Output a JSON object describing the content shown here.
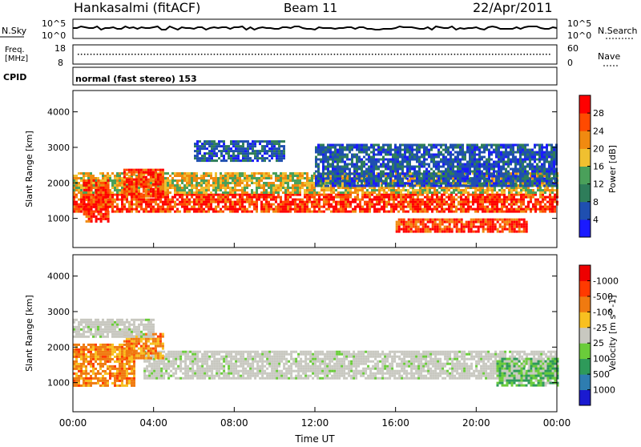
{
  "header": {
    "station": "Hankasalmi (fitACF)",
    "beam": "Beam 11",
    "date": "22/Apr/2011"
  },
  "noise_panel": {
    "left_label": "N.Sky",
    "left_ticks": [
      "10^5",
      "10^0"
    ],
    "right_label": "N.Search",
    "right_ticks": [
      "10^5",
      "10^0"
    ]
  },
  "freq_panel": {
    "left_label_1": "Freq.",
    "left_label_2": "[MHz]",
    "left_ticks": [
      "18",
      "8"
    ],
    "right_label": "Nave",
    "right_ticks": [
      "60",
      "0"
    ]
  },
  "cpid": {
    "label": "CPID",
    "value": "normal (fast stereo) 153"
  },
  "chart_data": [
    {
      "type": "heatmap",
      "name": "power",
      "ylabel": "Slant Range [km]",
      "ylim": [
        180,
        4600
      ],
      "yticks": [
        1000,
        2000,
        3000,
        4000
      ],
      "colorbar_label": "Power [dB]",
      "colorbar_ticks": [
        "4",
        "8",
        "12",
        "16",
        "20",
        "24",
        "28"
      ],
      "colorbar_colors": [
        "#1a1aff",
        "#1f4fb0",
        "#2e7d5a",
        "#4aa05a",
        "#f0c030",
        "#f08a10",
        "#ff4a00",
        "#ff0000"
      ],
      "bands": [
        {
          "start_h": 0.0,
          "end_h": 24.0,
          "low_km": 1200,
          "high_km": 1700,
          "level": "high"
        },
        {
          "start_h": 0.0,
          "end_h": 24.0,
          "low_km": 1700,
          "high_km": 2300,
          "level": "medium"
        },
        {
          "start_h": 6.0,
          "end_h": 10.5,
          "low_km": 2600,
          "high_km": 3200,
          "level": "low"
        },
        {
          "start_h": 12.0,
          "end_h": 24.0,
          "low_km": 1900,
          "high_km": 3100,
          "level": "low"
        },
        {
          "start_h": 0.5,
          "end_h": 1.8,
          "low_km": 900,
          "high_km": 2100,
          "level": "high"
        },
        {
          "start_h": 2.5,
          "end_h": 4.5,
          "low_km": 1600,
          "high_km": 2400,
          "level": "high"
        },
        {
          "start_h": 16.0,
          "end_h": 22.5,
          "low_km": 600,
          "high_km": 1000,
          "level": "high"
        }
      ]
    },
    {
      "type": "heatmap",
      "name": "velocity",
      "ylabel": "Slant Range [km]",
      "ylim": [
        180,
        4600
      ],
      "yticks": [
        1000,
        2000,
        3000,
        4000
      ],
      "xlabel": "Time UT",
      "xlim": [
        0,
        24
      ],
      "xticks": [
        "00:00",
        "04:00",
        "08:00",
        "12:00",
        "16:00",
        "20:00",
        "00:00"
      ],
      "colorbar_label": "Velocity [m s^-1]",
      "colorbar_ticks": [
        "1000",
        "500",
        "100",
        "25",
        "-25",
        "-100",
        "-500",
        "-1000"
      ],
      "colorbar_colors": [
        "#1a1ad0",
        "#2e7db0",
        "#2e9a5a",
        "#6acc3a",
        "#c8c8c0",
        "#f8c020",
        "#f07a10",
        "#ff3a00",
        "#ee0000"
      ],
      "bands": [
        {
          "start_h": 3.5,
          "end_h": 24.0,
          "low_km": 1100,
          "high_km": 1900,
          "level": "ground"
        },
        {
          "start_h": 0.0,
          "end_h": 3.0,
          "low_km": 900,
          "high_km": 2100,
          "level": "negative"
        },
        {
          "start_h": 2.5,
          "end_h": 4.5,
          "low_km": 1700,
          "high_km": 2400,
          "level": "negative"
        },
        {
          "start_h": 21.0,
          "end_h": 24.0,
          "low_km": 900,
          "high_km": 1700,
          "level": "positive"
        },
        {
          "start_h": 0.0,
          "end_h": 4.0,
          "low_km": 2300,
          "high_km": 2800,
          "level": "ground"
        }
      ]
    }
  ]
}
